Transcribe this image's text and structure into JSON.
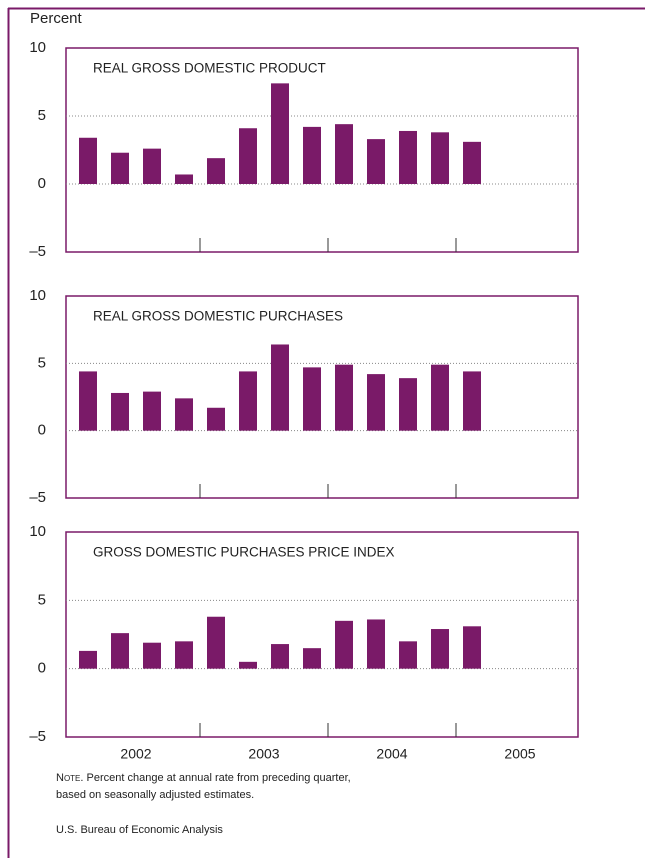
{
  "y_label": "Percent",
  "x_labels": [
    "2002",
    "2003",
    "2004",
    "2005"
  ],
  "note_label": "Note.",
  "note": [
    "Percent change at annual rate from preceding quarter,",
    "based on seasonally adjusted estimates."
  ],
  "source": "U.S. Bureau of Economic Analysis",
  "chart_data": [
    {
      "type": "bar",
      "title": "REAL GROSS DOMESTIC PRODUCT",
      "categories": [
        null,
        null,
        null,
        null,
        null,
        null,
        null,
        null,
        null,
        null,
        null,
        null,
        null
      ],
      "values": [
        3.4,
        2.3,
        2.6,
        0.7,
        1.9,
        4.1,
        7.4,
        4.2,
        4.4,
        3.3,
        3.9,
        3.8,
        3.1
      ],
      "color": "#7a1a68",
      "ylim": [
        -5,
        10
      ],
      "yticks": [
        {
          "value": -5,
          "label": "–5"
        },
        0,
        5,
        10
      ],
      "grid": true
    },
    {
      "type": "bar",
      "title": "REAL GROSS DOMESTIC PURCHASES",
      "categories": [
        null,
        null,
        null,
        null,
        null,
        null,
        null,
        null,
        null,
        null,
        null,
        null,
        null
      ],
      "values": [
        4.4,
        2.8,
        2.9,
        2.4,
        1.7,
        4.4,
        6.4,
        4.7,
        4.9,
        4.2,
        3.9,
        4.9,
        4.4
      ],
      "color": "#7a1a68",
      "ylim": [
        -5,
        10
      ],
      "yticks": [
        {
          "value": -5,
          "label": "–5"
        },
        0,
        5,
        10
      ],
      "grid": true
    },
    {
      "type": "bar",
      "title": "GROSS DOMESTIC PURCHASES PRICE INDEX",
      "categories": [
        null,
        null,
        null,
        null,
        null,
        null,
        null,
        null,
        null,
        null,
        null,
        null,
        null
      ],
      "values": [
        1.3,
        2.6,
        1.9,
        2.0,
        3.8,
        0.5,
        1.8,
        1.5,
        3.5,
        3.6,
        2.0,
        2.9,
        3.1
      ],
      "color": "#7a1a68",
      "ylim": [
        -5,
        10
      ],
      "yticks": [
        {
          "value": -5,
          "label": "–5"
        },
        0,
        5,
        10
      ],
      "grid": true
    }
  ]
}
